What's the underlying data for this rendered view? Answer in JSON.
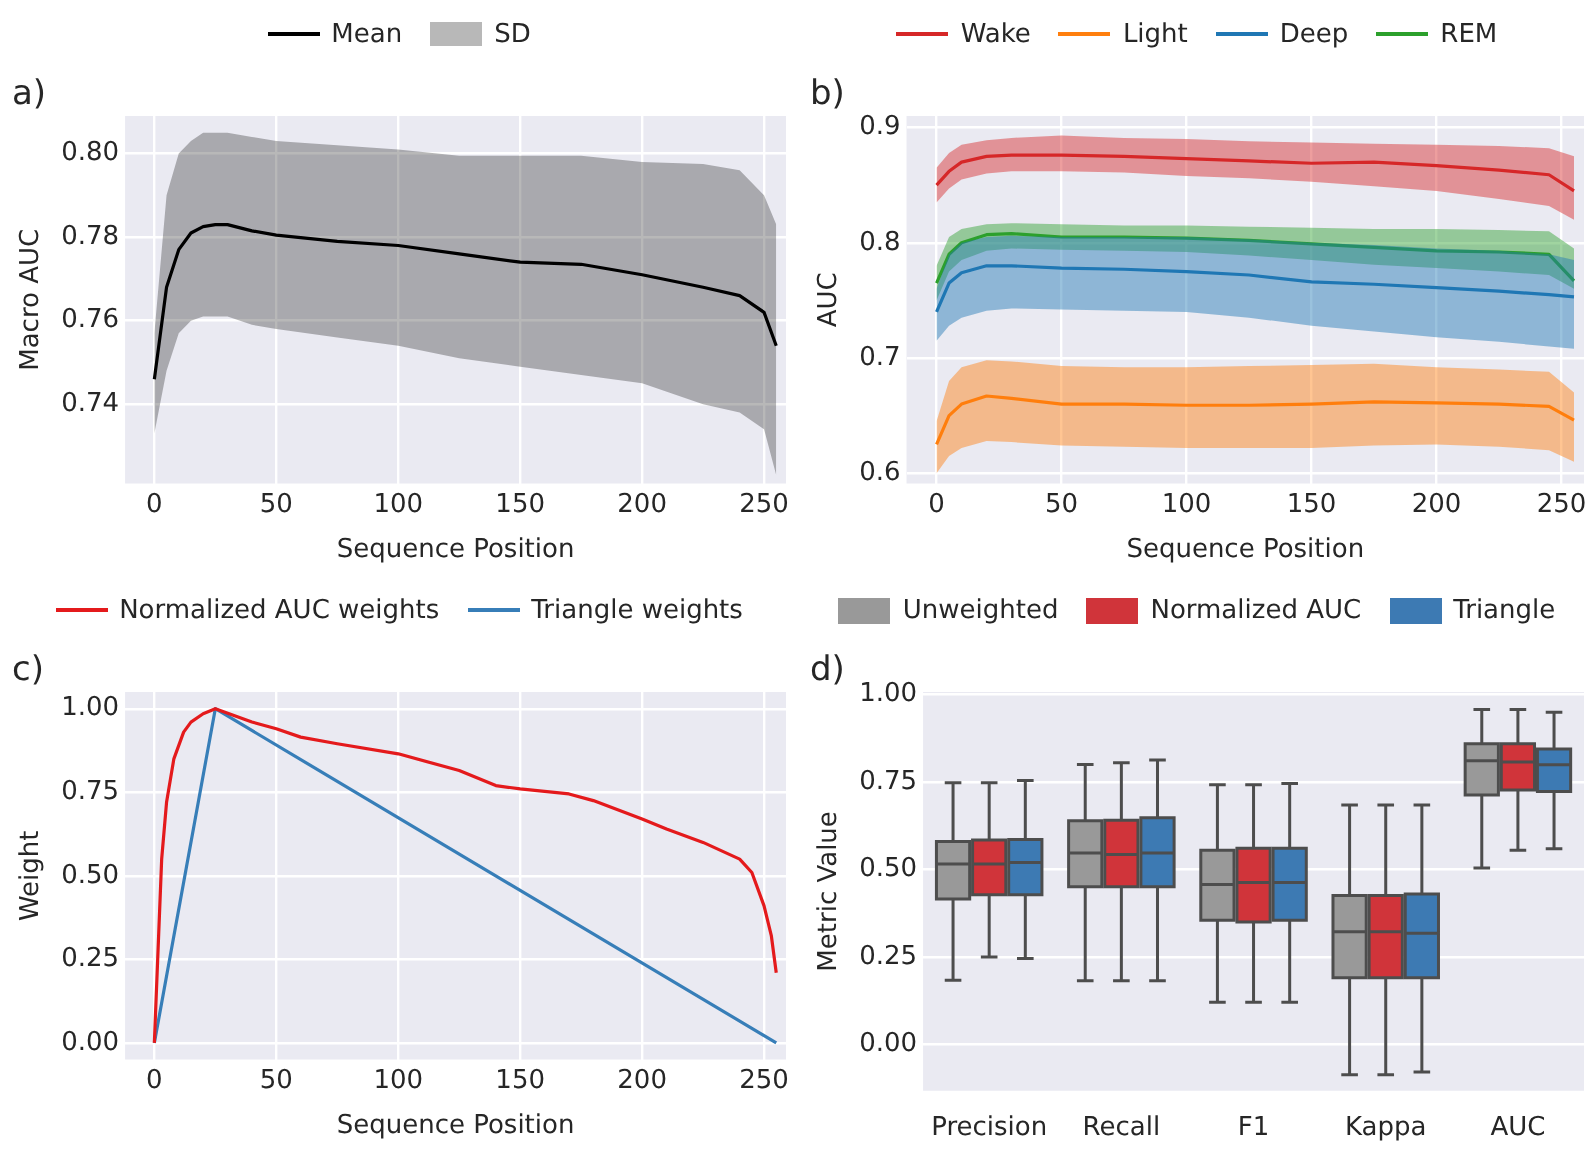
{
  "chart_data": [
    {
      "type": "line",
      "xlabel": "Sequence Position",
      "ylabel": "Macro AUC",
      "annotations": [
        "a)",
        "SD"
      ],
      "legend": "top",
      "grid": true,
      "xlim": [
        -12,
        259
      ],
      "xticks": [
        0,
        50,
        100,
        150,
        200,
        250
      ],
      "ylim": [
        0.721,
        0.809
      ],
      "yticks": [
        {
          "value": 0.74,
          "label": "0.74"
        },
        {
          "value": 0.76,
          "label": "0.76"
        },
        {
          "value": 0.78,
          "label": "0.78"
        },
        {
          "value": 0.8,
          "label": "0.80"
        }
      ],
      "x": [
        0,
        5,
        10,
        15,
        20,
        25,
        30,
        40,
        50,
        75,
        100,
        125,
        150,
        175,
        200,
        225,
        240,
        250,
        255
      ],
      "series": [
        {
          "name": "Mean",
          "color": "#000000",
          "values": [
            0.746,
            0.768,
            0.777,
            0.781,
            0.7825,
            0.783,
            0.783,
            0.7815,
            0.7805,
            0.779,
            0.778,
            0.776,
            0.774,
            0.7735,
            0.771,
            0.768,
            0.766,
            0.762,
            0.754
          ],
          "upper": [
            0.757,
            0.79,
            0.8,
            0.803,
            0.805,
            0.805,
            0.805,
            0.804,
            0.803,
            0.802,
            0.801,
            0.7995,
            0.7995,
            0.7995,
            0.798,
            0.7975,
            0.796,
            0.79,
            0.783
          ],
          "lower": [
            0.733,
            0.748,
            0.757,
            0.76,
            0.761,
            0.761,
            0.761,
            0.759,
            0.758,
            0.756,
            0.754,
            0.751,
            0.749,
            0.747,
            0.745,
            0.74,
            0.738,
            0.734,
            0.723
          ]
        }
      ]
    },
    {
      "type": "line",
      "xlabel": "Sequence Position",
      "ylabel": "AUC",
      "annotations": [
        "b)"
      ],
      "legend": "top",
      "grid": true,
      "xlim": [
        -12,
        259
      ],
      "xticks": [
        0,
        50,
        100,
        150,
        200,
        250
      ],
      "ylim": [
        0.591,
        0.91
      ],
      "yticks": [
        0.6,
        0.7,
        0.8,
        0.9
      ],
      "x": [
        0,
        5,
        10,
        20,
        30,
        50,
        75,
        100,
        125,
        150,
        175,
        200,
        225,
        245,
        255
      ],
      "series": [
        {
          "name": "Wake",
          "color": "#d62728",
          "values": [
            0.85,
            0.862,
            0.87,
            0.875,
            0.876,
            0.876,
            0.875,
            0.873,
            0.871,
            0.869,
            0.87,
            0.867,
            0.863,
            0.859,
            0.845
          ],
          "upper": [
            0.865,
            0.878,
            0.885,
            0.889,
            0.891,
            0.893,
            0.891,
            0.89,
            0.888,
            0.887,
            0.886,
            0.885,
            0.884,
            0.882,
            0.875
          ],
          "lower": [
            0.835,
            0.847,
            0.855,
            0.86,
            0.862,
            0.862,
            0.861,
            0.858,
            0.856,
            0.853,
            0.849,
            0.845,
            0.838,
            0.832,
            0.82
          ]
        },
        {
          "name": "Light",
          "color": "#ff7f0e",
          "values": [
            0.625,
            0.65,
            0.66,
            0.667,
            0.665,
            0.66,
            0.66,
            0.659,
            0.659,
            0.66,
            0.662,
            0.661,
            0.66,
            0.658,
            0.646
          ],
          "upper": [
            0.645,
            0.68,
            0.692,
            0.698,
            0.697,
            0.693,
            0.692,
            0.692,
            0.693,
            0.694,
            0.695,
            0.692,
            0.69,
            0.688,
            0.67
          ],
          "lower": [
            0.6,
            0.615,
            0.622,
            0.628,
            0.627,
            0.624,
            0.623,
            0.622,
            0.622,
            0.622,
            0.624,
            0.625,
            0.623,
            0.62,
            0.61
          ]
        },
        {
          "name": "Deep",
          "color": "#1f77b4",
          "values": [
            0.74,
            0.765,
            0.774,
            0.78,
            0.78,
            0.778,
            0.777,
            0.775,
            0.772,
            0.766,
            0.764,
            0.761,
            0.758,
            0.755,
            0.753
          ],
          "upper": [
            0.76,
            0.79,
            0.8,
            0.805,
            0.806,
            0.805,
            0.805,
            0.805,
            0.803,
            0.8,
            0.798,
            0.795,
            0.793,
            0.79,
            0.785
          ],
          "lower": [
            0.715,
            0.728,
            0.735,
            0.741,
            0.743,
            0.742,
            0.741,
            0.74,
            0.735,
            0.728,
            0.723,
            0.718,
            0.714,
            0.71,
            0.708
          ]
        },
        {
          "name": "REM",
          "color": "#2ca02c",
          "values": [
            0.765,
            0.79,
            0.8,
            0.807,
            0.808,
            0.805,
            0.805,
            0.804,
            0.802,
            0.799,
            0.796,
            0.793,
            0.792,
            0.79,
            0.767
          ],
          "upper": [
            0.78,
            0.805,
            0.812,
            0.816,
            0.817,
            0.816,
            0.815,
            0.815,
            0.814,
            0.813,
            0.812,
            0.812,
            0.811,
            0.81,
            0.795
          ],
          "lower": [
            0.75,
            0.775,
            0.785,
            0.793,
            0.795,
            0.794,
            0.793,
            0.792,
            0.789,
            0.785,
            0.781,
            0.778,
            0.775,
            0.772,
            0.76
          ]
        }
      ]
    },
    {
      "type": "line",
      "xlabel": "Sequence Position",
      "ylabel": "Weight",
      "annotations": [
        "c)"
      ],
      "legend": "top",
      "grid": true,
      "xlim": [
        -12,
        259
      ],
      "xticks": [
        0,
        50,
        100,
        150,
        200,
        250
      ],
      "ylim": [
        -0.05,
        1.05
      ],
      "yticks": [
        {
          "value": 0,
          "label": "0.00"
        },
        {
          "value": 0.25,
          "label": "0.25"
        },
        {
          "value": 0.5,
          "label": "0.50"
        },
        {
          "value": 0.75,
          "label": "0.75"
        },
        {
          "value": 1,
          "label": "1.00"
        }
      ],
      "series": [
        {
          "name": "Normalized AUC weights",
          "color": "#e41a1c",
          "x": [
            0,
            3,
            5,
            8,
            12,
            15,
            20,
            25,
            40,
            50,
            60,
            75,
            100,
            125,
            140,
            150,
            170,
            180,
            200,
            210,
            225,
            240,
            245,
            250,
            253,
            255
          ],
          "values": [
            0,
            0.55,
            0.72,
            0.85,
            0.93,
            0.96,
            0.985,
            1.0,
            0.96,
            0.94,
            0.915,
            0.895,
            0.865,
            0.815,
            0.77,
            0.76,
            0.745,
            0.725,
            0.67,
            0.64,
            0.6,
            0.55,
            0.51,
            0.41,
            0.32,
            0.21
          ]
        },
        {
          "name": "Triangle weights",
          "color": "#377eb8",
          "x": [
            0,
            25,
            255
          ],
          "values": [
            0,
            1,
            0
          ]
        }
      ]
    },
    {
      "type": "box",
      "ylabel": "Metric Value",
      "annotations": [
        "d)"
      ],
      "legend": "top",
      "grid": true,
      "categories": [
        "Precision",
        "Recall",
        "F1",
        "Kappa",
        "AUC"
      ],
      "ylim": [
        -0.132,
        1.007
      ],
      "yticks": [
        {
          "value": 0,
          "label": "0.00"
        },
        {
          "value": 0.25,
          "label": "0.25"
        },
        {
          "value": 0.5,
          "label": "0.50"
        },
        {
          "value": 0.75,
          "label": "0.75"
        },
        {
          "value": 1,
          "label": "1.00"
        }
      ],
      "series": [
        {
          "name": "Unweighted",
          "color": "#999999",
          "boxes": [
            {
              "low": 0.184,
              "q1": 0.416,
              "median": 0.516,
              "q3": 0.58,
              "high": 0.748
            },
            {
              "low": 0.182,
              "q1": 0.451,
              "median": 0.547,
              "q3": 0.639,
              "high": 0.8
            },
            {
              "low": 0.121,
              "q1": 0.355,
              "median": 0.457,
              "q3": 0.555,
              "high": 0.742
            },
            {
              "low": -0.086,
              "q1": 0.191,
              "median": 0.322,
              "q3": 0.426,
              "high": 0.684
            },
            {
              "low": 0.504,
              "q1": 0.713,
              "median": 0.811,
              "q3": 0.859,
              "high": 0.957
            }
          ]
        },
        {
          "name": "Normalized AUC",
          "color": "#d0343a",
          "boxes": [
            {
              "low": 0.25,
              "q1": 0.428,
              "median": 0.516,
              "q3": 0.584,
              "high": 0.748
            },
            {
              "low": 0.182,
              "q1": 0.451,
              "median": 0.543,
              "q3": 0.641,
              "high": 0.805
            },
            {
              "low": 0.121,
              "q1": 0.35,
              "median": 0.463,
              "q3": 0.561,
              "high": 0.742
            },
            {
              "low": -0.086,
              "q1": 0.191,
              "median": 0.322,
              "q3": 0.426,
              "high": 0.684
            },
            {
              "low": 0.555,
              "q1": 0.727,
              "median": 0.807,
              "q3": 0.859,
              "high": 0.957
            }
          ]
        },
        {
          "name": "Triangle",
          "color": "#3d7ab3",
          "boxes": [
            {
              "low": 0.246,
              "q1": 0.428,
              "median": 0.52,
              "q3": 0.586,
              "high": 0.754
            },
            {
              "low": 0.182,
              "q1": 0.451,
              "median": 0.547,
              "q3": 0.648,
              "high": 0.813
            },
            {
              "low": 0.121,
              "q1": 0.355,
              "median": 0.463,
              "q3": 0.561,
              "high": 0.746
            },
            {
              "low": -0.078,
              "q1": 0.191,
              "median": 0.318,
              "q3": 0.43,
              "high": 0.684
            },
            {
              "low": 0.559,
              "q1": 0.723,
              "median": 0.799,
              "q3": 0.844,
              "high": 0.949
            }
          ]
        }
      ]
    }
  ]
}
